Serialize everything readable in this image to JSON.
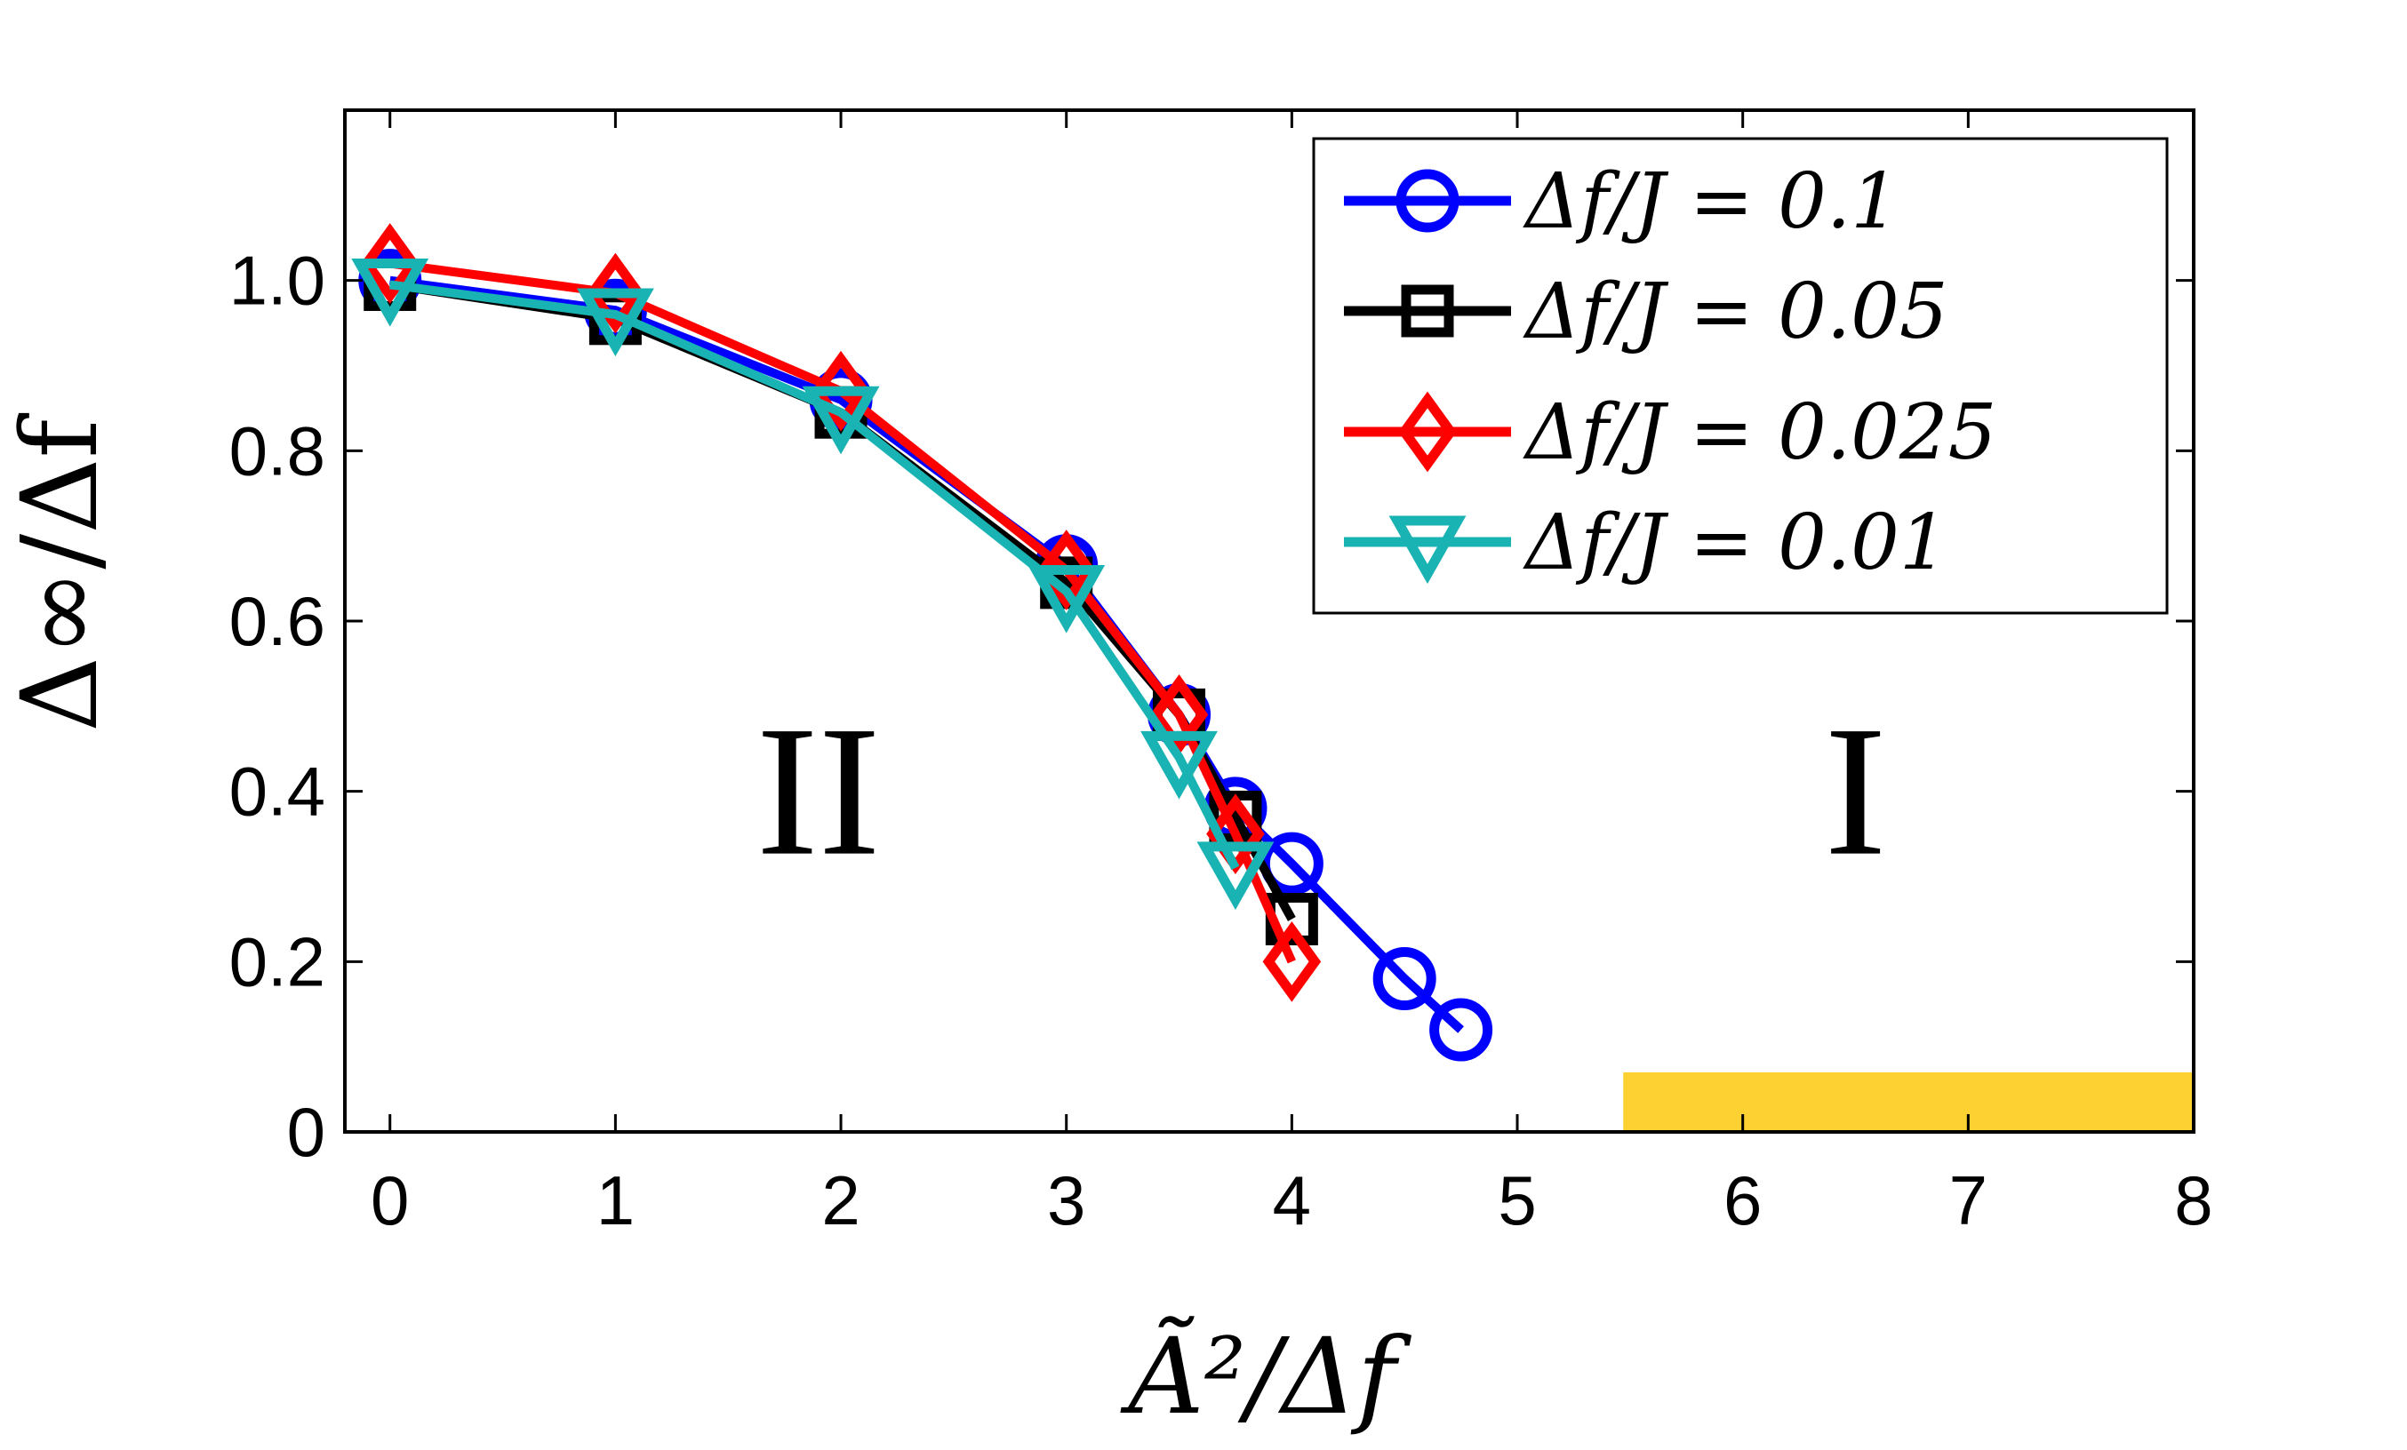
{
  "chart_data": {
    "type": "line",
    "xlabel": "Ã²/Δf",
    "ylabel": "Δ∞/Δf",
    "xlim": [
      -0.2,
      8
    ],
    "ylim": [
      0,
      1.2
    ],
    "xticks": [
      0,
      1,
      2,
      3,
      4,
      5,
      6,
      7,
      8
    ],
    "xtick_labels": [
      "0",
      "1",
      "2",
      "3",
      "4",
      "5",
      "6",
      "7",
      "8"
    ],
    "yticks": [
      0,
      0.2,
      0.4,
      0.6,
      0.8,
      1.0
    ],
    "ytick_labels": [
      "0",
      "0.2",
      "0.4",
      "0.6",
      "0.8",
      "1.0"
    ],
    "grid": false,
    "legend_position": "top-right",
    "series": [
      {
        "name": "Δf/J = 0.1",
        "color": "#0000ff",
        "marker": "circle",
        "x": [
          0,
          1,
          2,
          3,
          3.5,
          3.75,
          4,
          4.5,
          4.75
        ],
        "y": [
          1.0,
          0.965,
          0.86,
          0.665,
          0.49,
          0.38,
          0.315,
          0.18,
          0.12
        ]
      },
      {
        "name": "Δf/J = 0.05",
        "color": "#000000",
        "marker": "square",
        "x": [
          0,
          1,
          2,
          3,
          3.5,
          3.75,
          4
        ],
        "y": [
          0.995,
          0.955,
          0.845,
          0.645,
          0.49,
          0.37,
          0.25
        ]
      },
      {
        "name": "Δf/J = 0.025",
        "color": "#ff0000",
        "marker": "diamond",
        "x": [
          0,
          1,
          2,
          3,
          3.5,
          3.75,
          4
        ],
        "y": [
          1.02,
          0.985,
          0.87,
          0.66,
          0.49,
          0.35,
          0.2
        ]
      },
      {
        "name": "Δf/J = 0.01",
        "color": "#1ab3b3",
        "marker": "triangle-down",
        "x": [
          0,
          1,
          2,
          3,
          3.5,
          3.75
        ],
        "y": [
          0.995,
          0.96,
          0.845,
          0.635,
          0.44,
          0.31
        ]
      }
    ],
    "annotations": [
      {
        "text": "II",
        "x": 1.9,
        "y": 0.4
      },
      {
        "text": "I",
        "x": 6.5,
        "y": 0.4
      }
    ],
    "highlight_band": {
      "x": [
        5.47,
        8
      ],
      "y": [
        0,
        0.07
      ],
      "color": "#fcd131"
    }
  }
}
